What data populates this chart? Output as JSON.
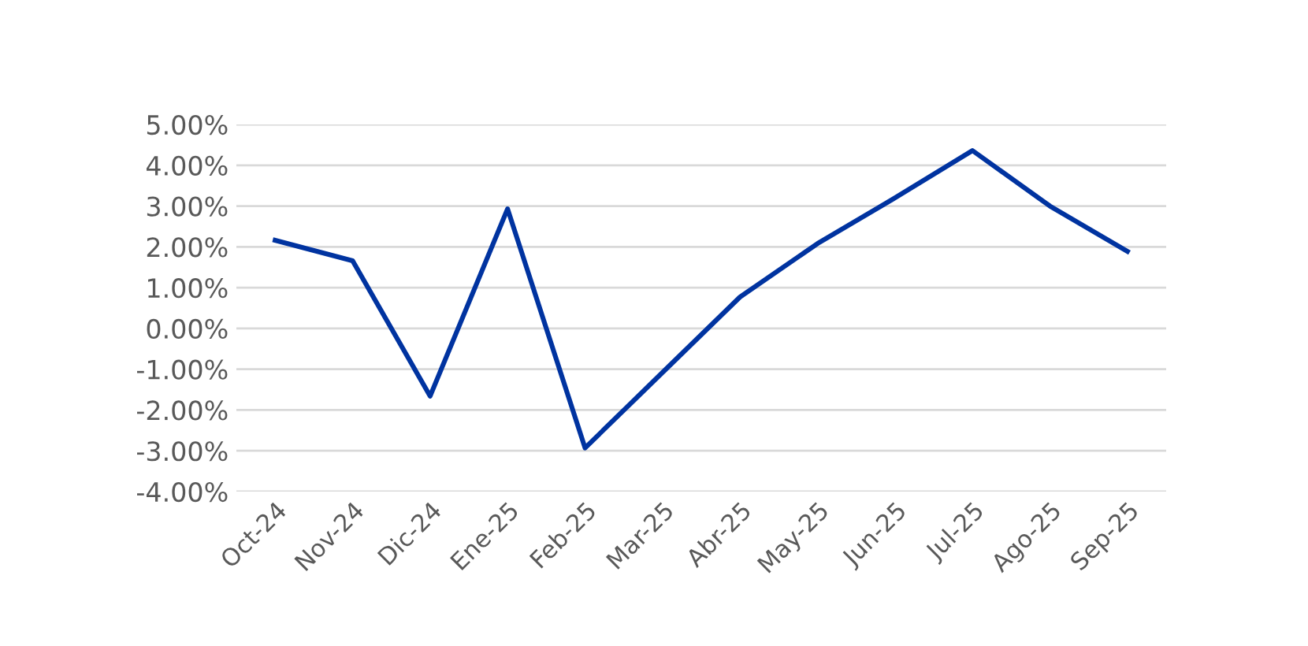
{
  "chart_data": {
    "type": "line",
    "categories": [
      "Oct-24",
      "Nov-24",
      "Dic-24",
      "Ene-25",
      "Feb-25",
      "Mar-25",
      "Abr-25",
      "May-25",
      "Jun-25",
      "Jul-25",
      "Ago-25",
      "Sep-25"
    ],
    "series": [
      {
        "color": "#0033a0",
        "values": [
          2.16,
          1.66,
          -1.66,
          2.93,
          -2.93,
          -1.08,
          0.77,
          2.08,
          3.2,
          4.36,
          3.0,
          1.89
        ]
      }
    ],
    "ylim": [
      -4,
      5
    ],
    "yticks": [
      {
        "value": -4,
        "label": "-4.00%"
      },
      {
        "value": -3,
        "label": "-3.00%"
      },
      {
        "value": -2,
        "label": "-2.00%"
      },
      {
        "value": -1,
        "label": "-1.00%"
      },
      {
        "value": 0,
        "label": "0.00%"
      },
      {
        "value": 1,
        "label": "1.00%"
      },
      {
        "value": 2,
        "label": "2.00%"
      },
      {
        "value": 3,
        "label": "3.00%"
      },
      {
        "value": 4,
        "label": "4.00%"
      },
      {
        "value": 5,
        "label": "5.00%"
      }
    ],
    "grid": "y",
    "legend": false,
    "marker": "none",
    "line_style": "solid"
  }
}
